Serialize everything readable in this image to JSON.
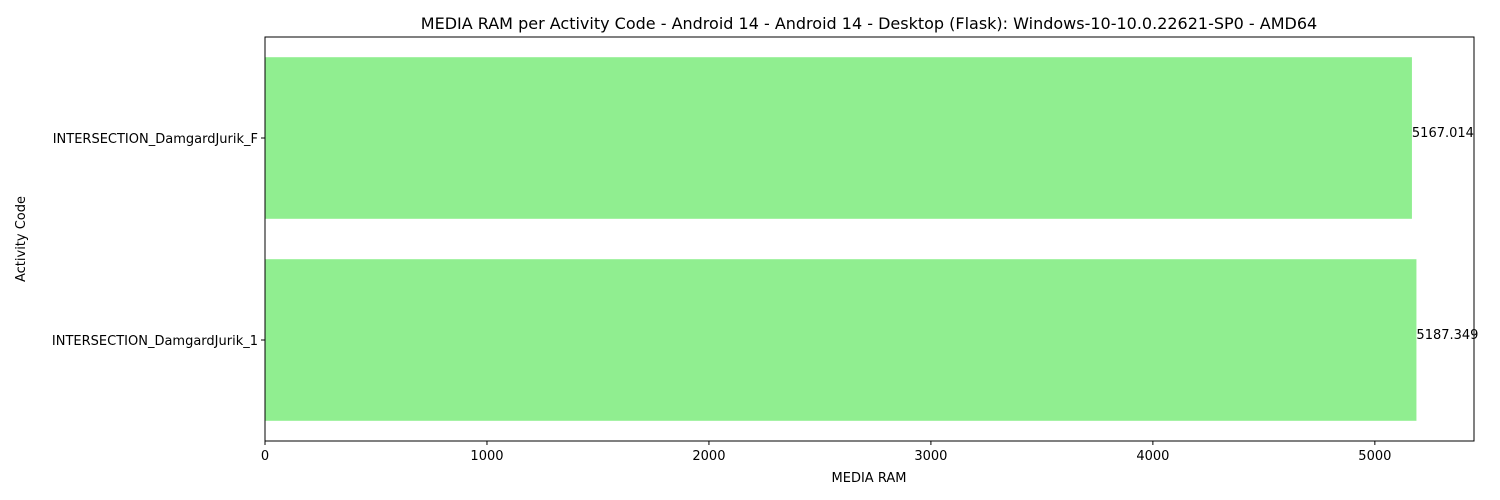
{
  "chart_data": {
    "type": "bar",
    "orientation": "horizontal",
    "title": "MEDIA RAM per Activity Code - Android 14 - Android 14 - Desktop (Flask): Windows-10-10.0.22621-SP0 - AMD64",
    "xlabel": "MEDIA RAM",
    "ylabel": "Activity Code",
    "categories": [
      "INTERSECTION_DamgardJurik_F",
      "INTERSECTION_DamgardJurik_1"
    ],
    "values": [
      5167.014,
      5187.349
    ],
    "data_labels": [
      "5167.014",
      "5187.349"
    ],
    "xlim": [
      0,
      5446.7
    ],
    "xticks": [
      0,
      1000,
      2000,
      3000,
      4000,
      5000
    ],
    "xtick_labels": [
      "0",
      "1000",
      "2000",
      "3000",
      "4000",
      "5000"
    ],
    "grid": false,
    "legend": "none",
    "bar_color": "#90ee90"
  }
}
